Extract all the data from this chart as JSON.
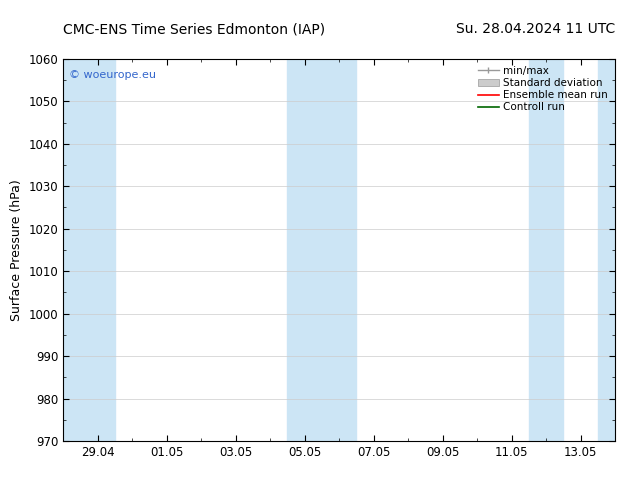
{
  "title_left": "CMC-ENS Time Series Edmonton (IAP)",
  "title_right": "Su. 28.04.2024 11 UTC",
  "ylabel": "Surface Pressure (hPa)",
  "ylim": [
    970,
    1060
  ],
  "yticks": [
    970,
    980,
    990,
    1000,
    1010,
    1020,
    1030,
    1040,
    1050,
    1060
  ],
  "xtick_labels": [
    "29.04",
    "01.05",
    "03.05",
    "05.05",
    "07.05",
    "09.05",
    "11.05",
    "13.05"
  ],
  "xtick_positions": [
    1,
    3,
    5,
    7,
    9,
    11,
    13,
    15
  ],
  "xmin": 0,
  "xmax": 16,
  "shaded_bands": [
    {
      "x_start": 0,
      "x_end": 1.5
    },
    {
      "x_start": 6.5,
      "x_end": 8.5
    },
    {
      "x_start": 13.5,
      "x_end": 14.5
    },
    {
      "x_start": 15.5,
      "x_end": 16
    }
  ],
  "band_color": "#cce5f5",
  "background_color": "#ffffff",
  "watermark_text": "© woeurope.eu",
  "watermark_color": "#3366cc",
  "legend_items": [
    {
      "label": "min/max",
      "color": "#999999",
      "style": "minmax"
    },
    {
      "label": "Standard deviation",
      "color": "#cccccc",
      "style": "stddev"
    },
    {
      "label": "Ensemble mean run",
      "color": "#ff0000",
      "style": "line"
    },
    {
      "label": "Controll run",
      "color": "#006600",
      "style": "line"
    }
  ],
  "title_fontsize": 10,
  "tick_fontsize": 8.5,
  "ylabel_fontsize": 9,
  "legend_fontsize": 7.5,
  "watermark_fontsize": 8
}
